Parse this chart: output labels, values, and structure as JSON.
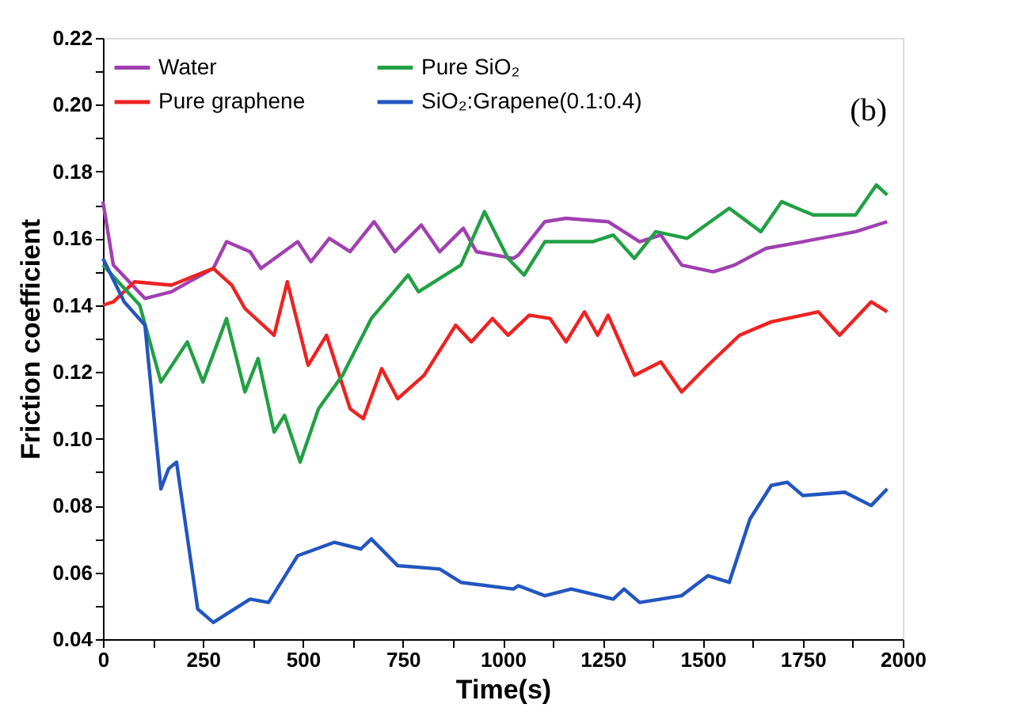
{
  "chart_data": {
    "type": "line",
    "xlabel": "Time(s)",
    "ylabel": "Friction coefficient",
    "xlim": [
      0,
      2000
    ],
    "ylim": [
      0.04,
      0.22
    ],
    "xticks": [
      0,
      {
        "value": 125,
        "label": null
      },
      250,
      {
        "value": 375,
        "label": null
      },
      500,
      {
        "value": 625,
        "label": null
      },
      750,
      {
        "value": 875,
        "label": null
      },
      1000,
      {
        "value": 1125,
        "label": null
      },
      1250,
      {
        "value": 1375,
        "label": null
      },
      1500,
      {
        "value": 1625,
        "label": null
      },
      1750,
      {
        "value": 1875,
        "label": null
      },
      2000
    ],
    "yticks": [
      0.04,
      {
        "value": 0.05,
        "label": null
      },
      0.06,
      {
        "value": 0.07,
        "label": null
      },
      0.08,
      {
        "value": 0.09,
        "label": null
      },
      "0.10",
      {
        "value": 0.11,
        "label": null
      },
      0.12,
      {
        "value": 0.13,
        "label": null
      },
      0.14,
      {
        "value": 0.15,
        "label": null
      },
      0.16,
      {
        "value": 0.17,
        "label": null
      },
      0.18,
      {
        "value": 0.19,
        "label": null
      },
      "0.20",
      {
        "value": 0.21,
        "label": null
      },
      0.22
    ],
    "grid": false,
    "legend": "top left",
    "marker": "none",
    "line_style": "solid",
    "annotations": [
      "(b)"
    ],
    "series": [
      {
        "name": "Water",
        "color": "#a040b0",
        "x": [
          0,
          26,
          105,
          171,
          276,
          309,
          368,
          395,
          487,
          520,
          566,
          618,
          678,
          730,
          796,
          842,
          901,
          934,
          1026,
          1039,
          1105,
          1158,
          1263,
          1342,
          1395,
          1447,
          1526,
          1579,
          1658,
          1750,
          1882,
          1961
        ],
        "values": [
          0.171,
          0.152,
          0.142,
          0.144,
          0.151,
          0.159,
          0.156,
          0.151,
          0.159,
          0.153,
          0.16,
          0.156,
          0.165,
          0.156,
          0.164,
          0.156,
          0.163,
          0.156,
          0.154,
          0.155,
          0.165,
          0.166,
          0.165,
          0.159,
          0.161,
          0.152,
          0.15,
          0.152,
          0.157,
          0.159,
          0.162,
          0.165
        ]
      },
      {
        "name": "Pure graphene",
        "color": "#ee2222",
        "x": [
          0,
          26,
          79,
          171,
          276,
          322,
          355,
          428,
          461,
          513,
          559,
          618,
          651,
          697,
          737,
          803,
          882,
          921,
          974,
          1013,
          1066,
          1118,
          1158,
          1204,
          1237,
          1263,
          1329,
          1395,
          1447,
          1513,
          1592,
          1671,
          1789,
          1842,
          1921,
          1961
        ],
        "values": [
          0.14,
          0.141,
          0.147,
          0.146,
          0.151,
          0.146,
          0.139,
          0.131,
          0.147,
          0.122,
          0.131,
          0.109,
          0.106,
          0.121,
          0.112,
          0.119,
          0.134,
          0.129,
          0.136,
          0.131,
          0.137,
          0.136,
          0.129,
          0.138,
          0.131,
          0.137,
          0.119,
          0.123,
          0.114,
          0.122,
          0.131,
          0.135,
          0.138,
          0.131,
          0.141,
          0.138
        ]
      },
      {
        "name": "Pure SiO₂",
        "color": "#22a044",
        "x": [
          0,
          92,
          145,
          211,
          250,
          309,
          355,
          388,
          428,
          454,
          493,
          539,
          599,
          671,
          763,
          789,
          895,
          954,
          1013,
          1053,
          1105,
          1224,
          1276,
          1329,
          1382,
          1461,
          1566,
          1645,
          1697,
          1776,
          1882,
          1934,
          1961
        ],
        "values": [
          0.152,
          0.14,
          0.117,
          0.129,
          0.117,
          0.136,
          0.114,
          0.124,
          0.102,
          0.107,
          0.093,
          0.109,
          0.119,
          0.136,
          0.149,
          0.144,
          0.152,
          0.168,
          0.154,
          0.149,
          0.159,
          0.159,
          0.161,
          0.154,
          0.162,
          0.16,
          0.169,
          0.162,
          0.171,
          0.167,
          0.167,
          0.176,
          0.173
        ]
      },
      {
        "name": "SiO₂:Grapene(0.1:0.4)",
        "color": "#2255c0",
        "x": [
          0,
          53,
          105,
          145,
          164,
          184,
          237,
          276,
          368,
          414,
          487,
          579,
          645,
          671,
          737,
          842,
          895,
          1026,
          1039,
          1105,
          1171,
          1276,
          1303,
          1342,
          1447,
          1513,
          1566,
          1618,
          1671,
          1711,
          1750,
          1855,
          1921,
          1961
        ],
        "values": [
          0.154,
          0.141,
          0.134,
          0.085,
          0.091,
          0.093,
          0.049,
          0.045,
          0.052,
          0.051,
          0.065,
          0.069,
          0.067,
          0.07,
          0.062,
          0.061,
          0.057,
          0.055,
          0.056,
          0.053,
          0.055,
          0.052,
          0.055,
          0.051,
          0.053,
          0.059,
          0.057,
          0.076,
          0.086,
          0.087,
          0.083,
          0.084,
          0.08,
          0.085
        ]
      }
    ]
  }
}
